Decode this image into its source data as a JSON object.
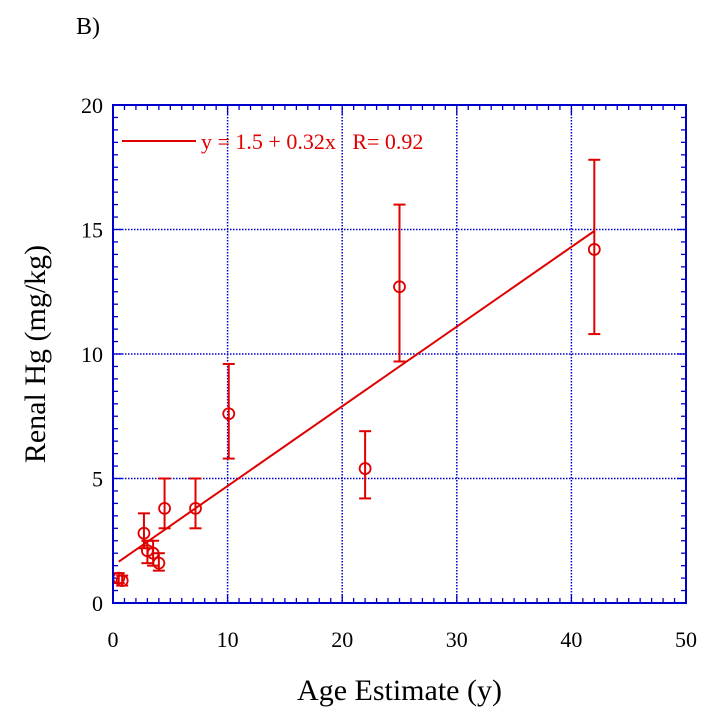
{
  "panel_label": "B)",
  "colors": {
    "frame": "#0000cc",
    "series": "#e00000",
    "text": "#000000"
  },
  "chart_data": {
    "type": "scatter",
    "xlabel": "Age Estimate (y)",
    "ylabel": "Renal Hg (mg/kg)",
    "xlim": [
      0,
      50
    ],
    "ylim": [
      0,
      20
    ],
    "x_ticks": [
      0,
      10,
      20,
      30,
      40,
      50
    ],
    "y_ticks": [
      0,
      5,
      10,
      15,
      20
    ],
    "grid": true,
    "legend_position": "top-left",
    "series": [
      {
        "name": "y = 1.5 + 0.32x   R= 0.92",
        "points": [
          {
            "x": 0.5,
            "y": 1.0,
            "lo": 0.8,
            "hi": 1.2
          },
          {
            "x": 0.8,
            "y": 0.9,
            "lo": 0.7,
            "hi": 1.1
          },
          {
            "x": 2.7,
            "y": 2.8,
            "lo": 2.2,
            "hi": 3.6
          },
          {
            "x": 3.0,
            "y": 2.1,
            "lo": 1.6,
            "hi": 2.5
          },
          {
            "x": 3.5,
            "y": 2.0,
            "lo": 1.5,
            "hi": 2.5
          },
          {
            "x": 4.0,
            "y": 1.6,
            "lo": 1.3,
            "hi": 2.0
          },
          {
            "x": 4.5,
            "y": 3.8,
            "lo": 3.0,
            "hi": 5.0
          },
          {
            "x": 7.2,
            "y": 3.8,
            "lo": 3.0,
            "hi": 5.0
          },
          {
            "x": 10.1,
            "y": 7.6,
            "lo": 5.8,
            "hi": 9.6
          },
          {
            "x": 22.0,
            "y": 5.4,
            "lo": 4.2,
            "hi": 6.9
          },
          {
            "x": 25.0,
            "y": 12.7,
            "lo": 9.7,
            "hi": 16.0
          },
          {
            "x": 42.0,
            "y": 14.2,
            "lo": 10.8,
            "hi": 17.8
          }
        ],
        "fit": {
          "x0": 0.5,
          "x1": 42.0,
          "intercept": 1.5,
          "slope": 0.32
        }
      }
    ]
  }
}
